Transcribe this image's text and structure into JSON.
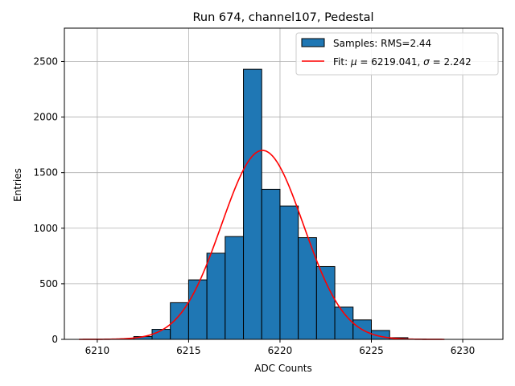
{
  "chart_data": {
    "type": "bar",
    "title": "Run 674, channel107, Pedestal",
    "xlabel": "ADC Counts",
    "ylabel": "Entries",
    "xlim": [
      6208.2,
      6232.2
    ],
    "ylim": [
      0,
      2800
    ],
    "xticks": [
      6210,
      6215,
      6220,
      6225,
      6230
    ],
    "yticks": [
      0,
      500,
      1000,
      1500,
      2000,
      2500
    ],
    "grid": true,
    "legend_position": "top-right",
    "histogram": {
      "name": "Samples: RMS=2.44",
      "color": "#1f77b4",
      "edge_color": "#000000",
      "bin_width": 1,
      "bins": [
        {
          "x0": 6209,
          "value": 0
        },
        {
          "x0": 6210,
          "value": 0
        },
        {
          "x0": 6211,
          "value": 2
        },
        {
          "x0": 6212,
          "value": 25
        },
        {
          "x0": 6213,
          "value": 90
        },
        {
          "x0": 6214,
          "value": 330
        },
        {
          "x0": 6215,
          "value": 535
        },
        {
          "x0": 6216,
          "value": 775
        },
        {
          "x0": 6217,
          "value": 925
        },
        {
          "x0": 6218,
          "value": 2430
        },
        {
          "x0": 6219,
          "value": 1350
        },
        {
          "x0": 6220,
          "value": 1200
        },
        {
          "x0": 6221,
          "value": 915
        },
        {
          "x0": 6222,
          "value": 655
        },
        {
          "x0": 6223,
          "value": 290
        },
        {
          "x0": 6224,
          "value": 175
        },
        {
          "x0": 6225,
          "value": 80
        },
        {
          "x0": 6226,
          "value": 15
        },
        {
          "x0": 6227,
          "value": 2
        },
        {
          "x0": 6228,
          "value": 0
        }
      ]
    },
    "fit": {
      "name": "Fit: μ = 6219.041, σ = 2.242",
      "name_prefix": "Fit: ",
      "mu_symbol": "μ",
      "mu_text": " = 6219.041, ",
      "sigma_symbol": "σ",
      "sigma_text": " = 2.242",
      "color": "#ff0000",
      "mu": 6219.041,
      "sigma": 2.242,
      "amplitude": 1700,
      "x_range": [
        6209,
        6229
      ]
    }
  }
}
